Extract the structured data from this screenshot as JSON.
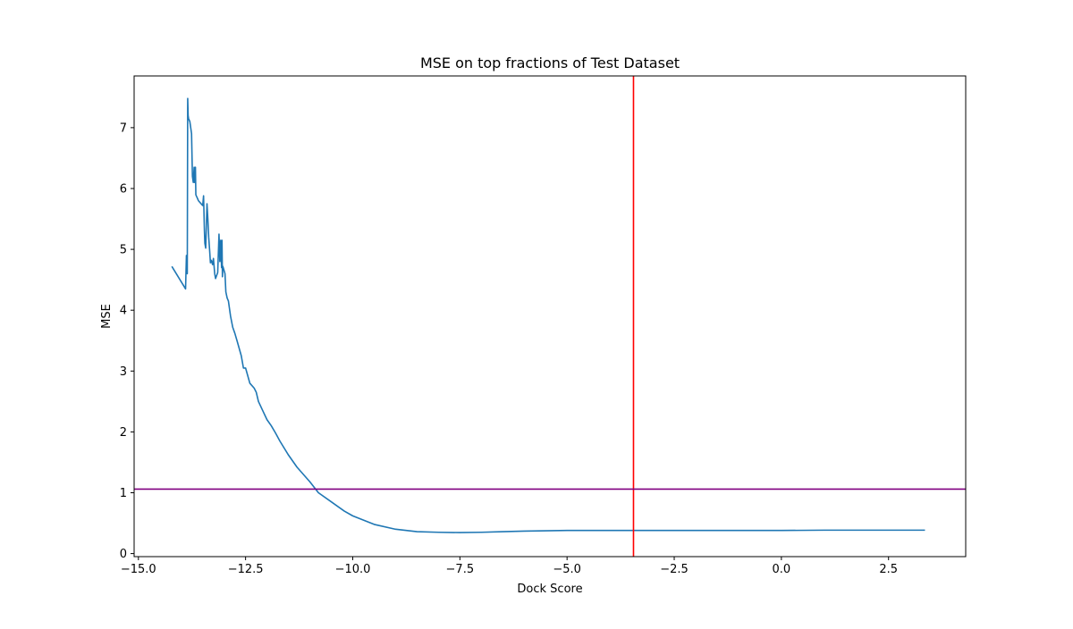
{
  "chart_data": {
    "type": "line",
    "title": "MSE on top fractions of Test Dataset",
    "xlabel": "Dock Score",
    "ylabel": "MSE",
    "xlim": [
      -15.1,
      4.3
    ],
    "ylim": [
      -0.05,
      7.85
    ],
    "x_ticks": [
      -15.0,
      -12.5,
      -10.0,
      -7.5,
      -5.0,
      -2.5,
      0.0,
      2.5
    ],
    "x_tick_labels": [
      "−15.0",
      "−12.5",
      "−10.0",
      "−7.5",
      "−5.0",
      "−2.5",
      "0.0",
      "2.5"
    ],
    "y_ticks": [
      0,
      1,
      2,
      3,
      4,
      5,
      6,
      7
    ],
    "y_tick_labels": [
      "0",
      "1",
      "2",
      "3",
      "4",
      "5",
      "6",
      "7"
    ],
    "grid": false,
    "series": [
      {
        "color": "#1f77b4",
        "x": [
          -14.22,
          -13.9,
          -13.88,
          -13.86,
          -13.85,
          -13.84,
          -13.83,
          -13.8,
          -13.78,
          -13.76,
          -13.74,
          -13.72,
          -13.7,
          -13.69,
          -13.67,
          -13.66,
          -13.65,
          -13.63,
          -13.6,
          -13.5,
          -13.48,
          -13.46,
          -13.45,
          -13.43,
          -13.4,
          -13.38,
          -13.36,
          -13.34,
          -13.32,
          -13.3,
          -13.27,
          -13.25,
          -13.22,
          -13.2,
          -13.15,
          -13.12,
          -13.1,
          -13.08,
          -13.06,
          -13.05,
          -13.04,
          -13.03,
          -13.0,
          -12.98,
          -12.96,
          -12.93,
          -12.9,
          -12.85,
          -12.8,
          -12.75,
          -12.7,
          -12.6,
          -12.55,
          -12.5,
          -12.4,
          -12.3,
          -12.25,
          -12.2,
          -12.1,
          -12.0,
          -11.9,
          -11.8,
          -11.7,
          -11.5,
          -11.3,
          -11.0,
          -10.8,
          -10.5,
          -10.2,
          -10.0,
          -9.5,
          -9.0,
          -8.5,
          -8.0,
          -7.5,
          -7.0,
          -6.5,
          -6.0,
          -5.5,
          -5.0,
          -4.5,
          -4.0,
          -3.5,
          -3.0,
          -2.0,
          -1.0,
          0.0,
          1.0,
          2.0,
          3.0,
          3.35
        ],
        "y": [
          4.72,
          4.35,
          4.9,
          4.6,
          7.48,
          7.2,
          7.15,
          7.1,
          7.0,
          6.9,
          6.2,
          6.1,
          6.35,
          6.1,
          6.35,
          5.9,
          5.88,
          5.85,
          5.8,
          5.72,
          5.88,
          5.3,
          5.1,
          5.02,
          5.75,
          5.5,
          5.2,
          5.0,
          4.78,
          4.82,
          4.75,
          4.85,
          4.6,
          4.52,
          4.62,
          5.25,
          4.8,
          5.15,
          4.7,
          5.15,
          4.55,
          4.72,
          4.65,
          4.6,
          4.3,
          4.2,
          4.15,
          3.9,
          3.72,
          3.62,
          3.5,
          3.25,
          3.05,
          3.05,
          2.8,
          2.72,
          2.65,
          2.5,
          2.35,
          2.2,
          2.1,
          1.98,
          1.85,
          1.62,
          1.42,
          1.18,
          1.0,
          0.85,
          0.7,
          0.62,
          0.48,
          0.4,
          0.36,
          0.35,
          0.345,
          0.35,
          0.36,
          0.37,
          0.375,
          0.38,
          0.38,
          0.38,
          0.38,
          0.38,
          0.38,
          0.38,
          0.38,
          0.385,
          0.385,
          0.385,
          0.385
        ]
      }
    ],
    "reference_lines": [
      {
        "orientation": "vertical",
        "value": -3.45,
        "color": "#ff0000"
      },
      {
        "orientation": "horizontal",
        "value": 1.06,
        "color": "#800080"
      }
    ]
  }
}
